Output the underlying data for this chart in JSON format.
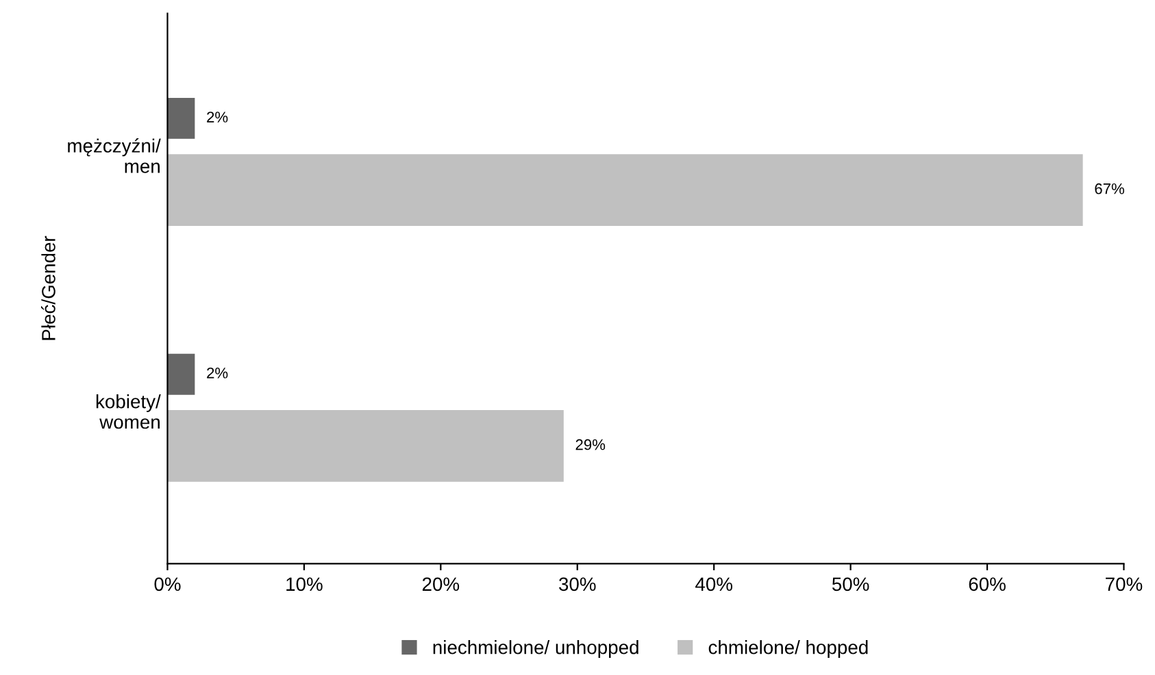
{
  "chart_data": {
    "type": "bar",
    "orientation": "horizontal",
    "ylabel": "Płeć/Gender",
    "categories": [
      "mężczyźni/\nmen",
      "kobiety/\nwomen"
    ],
    "series": [
      {
        "name": "niechmielone/ unhopped",
        "color": "#666666",
        "values": [
          2,
          2
        ],
        "value_labels": [
          "2%",
          "2%"
        ]
      },
      {
        "name": "chmielone/ hopped",
        "color": "#c0c0c0",
        "values": [
          67,
          29
        ],
        "value_labels": [
          "67%",
          "29%"
        ]
      }
    ],
    "xlim": [
      0,
      70
    ],
    "xticks": [
      {
        "value": 0,
        "label": "0%"
      },
      {
        "value": 10,
        "label": "10%"
      },
      {
        "value": 20,
        "label": "20%"
      },
      {
        "value": 30,
        "label": "30%"
      },
      {
        "value": 40,
        "label": "40%"
      },
      {
        "value": 50,
        "label": "50%"
      },
      {
        "value": 60,
        "label": "60%"
      },
      {
        "value": 70,
        "label": "70%"
      }
    ],
    "grid": false,
    "legend": "bottom"
  }
}
